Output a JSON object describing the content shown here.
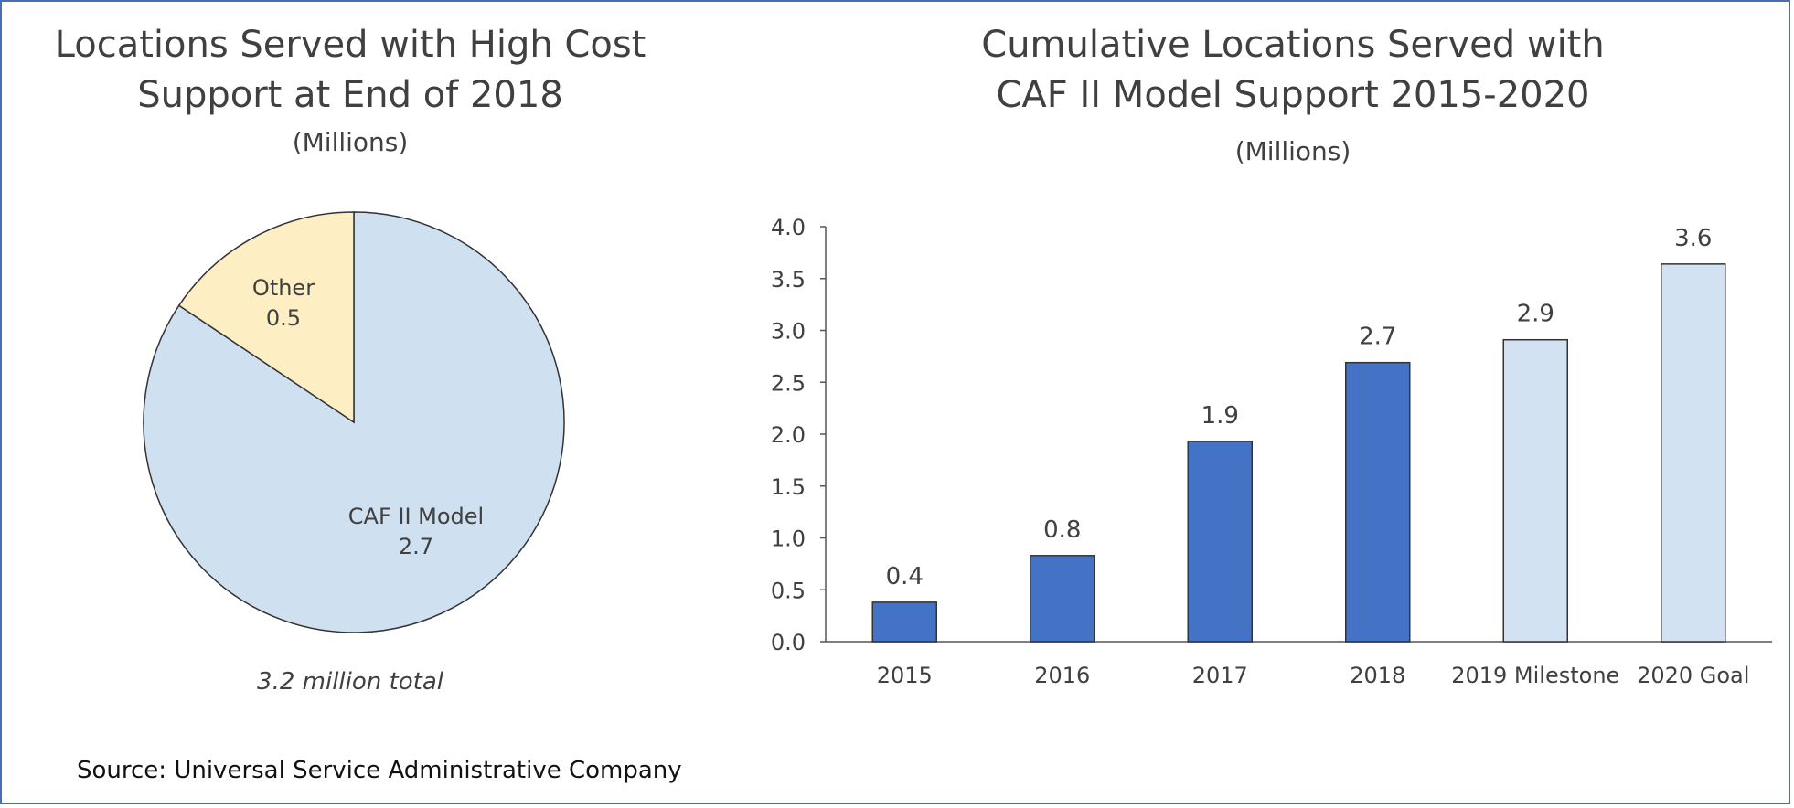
{
  "colors": {
    "caf_model": "#cfe0f1",
    "other": "#fdefc3",
    "actual": "#4472c4",
    "target": "#d2e2f3",
    "outline": "#333333",
    "frame": "#4a6fb0"
  },
  "source_text": "Source: Universal Service Administrative  Company",
  "chart_data": [
    {
      "type": "pie",
      "title_lines": [
        "Locations Served with High Cost",
        "Support at End of 2018"
      ],
      "subtitle": "(Millions)",
      "slices": [
        {
          "label": "CAF II Model",
          "value": 2.7,
          "display": "2.7"
        },
        {
          "label": "Other",
          "value": 0.5,
          "display": "0.5"
        }
      ],
      "total_text": "3.2 million  total"
    },
    {
      "type": "bar",
      "title_lines": [
        "Cumulative Locations Served with",
        "CAF II Model Support 2015-2020"
      ],
      "subtitle": "(Millions)",
      "categories": [
        "2015",
        "2016",
        "2017",
        "2018",
        "2019 Milestone",
        "2020 Goal"
      ],
      "values": [
        0.38,
        0.83,
        1.93,
        2.69,
        2.91,
        3.64
      ],
      "value_labels": [
        "0.4",
        "0.8",
        "1.9",
        "2.7",
        "2.9",
        "3.6"
      ],
      "kinds": [
        "actual",
        "actual",
        "actual",
        "actual",
        "target",
        "target"
      ],
      "ylim": [
        0,
        4.0
      ],
      "yticks": [
        "0.0",
        "0.5",
        "1.0",
        "1.5",
        "2.0",
        "2.5",
        "3.0",
        "3.5",
        "4.0"
      ],
      "grid": false,
      "legend": "none"
    }
  ]
}
